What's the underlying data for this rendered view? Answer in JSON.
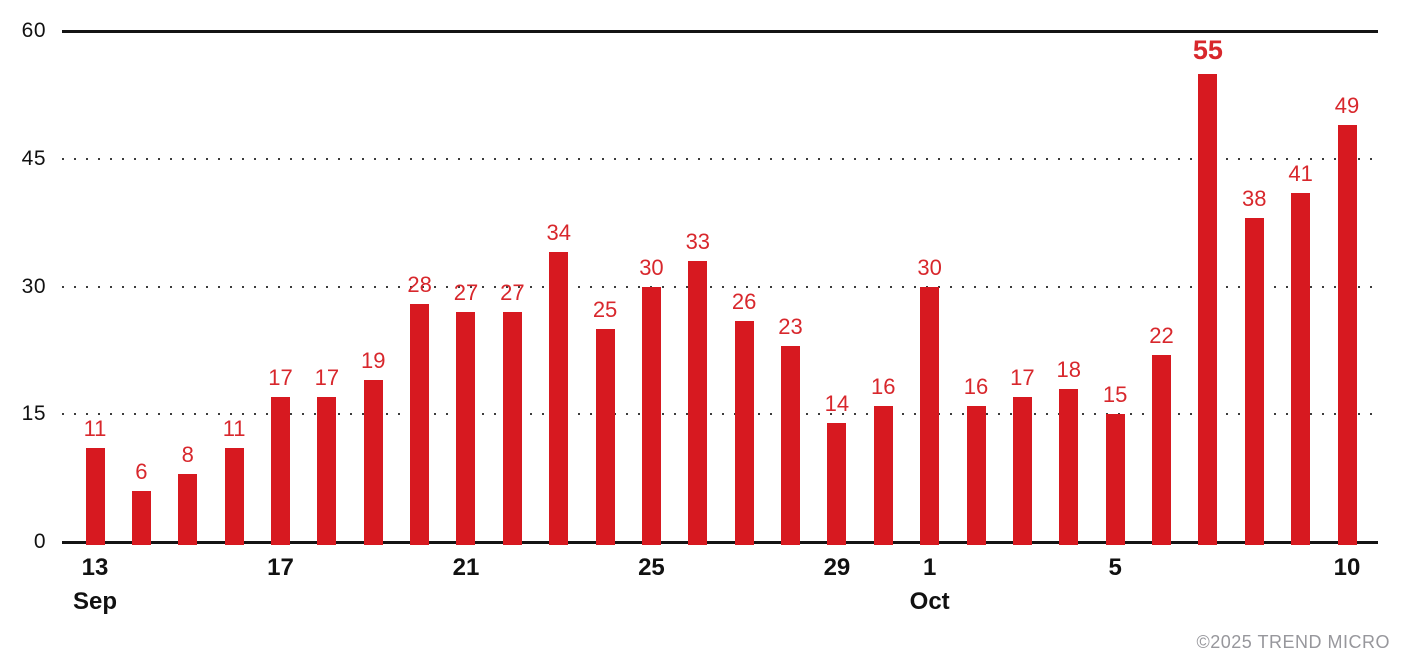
{
  "chart_data": {
    "type": "bar",
    "title": "",
    "xlabel": "",
    "ylabel": "",
    "categories": [
      "Sep 13",
      "Sep 14",
      "Sep 15",
      "Sep 16",
      "Sep 17",
      "Sep 18",
      "Sep 19",
      "Sep 20",
      "Sep 21",
      "Sep 22",
      "Sep 23",
      "Sep 24",
      "Sep 25",
      "Sep 26",
      "Sep 27",
      "Sep 28",
      "Sep 29",
      "Sep 30",
      "Oct 1",
      "Oct 2",
      "Oct 3",
      "Oct 4",
      "Oct 5",
      "Oct 6",
      "Oct 7",
      "Oct 8",
      "Oct 9",
      "Oct 10"
    ],
    "values": [
      11,
      6,
      8,
      11,
      17,
      17,
      19,
      28,
      27,
      27,
      34,
      25,
      30,
      33,
      26,
      23,
      14,
      16,
      30,
      16,
      17,
      18,
      15,
      22,
      55,
      38,
      41,
      49
    ],
    "ylim": [
      0,
      60
    ],
    "y_axis": {
      "ticks": [
        {
          "value": 60,
          "label": "60",
          "line": "solid"
        },
        {
          "value": 45,
          "label": "45",
          "line": "dotted"
        },
        {
          "value": 30,
          "label": "30",
          "line": "dotted"
        },
        {
          "value": 15,
          "label": "15",
          "line": "dotted"
        },
        {
          "value": 0,
          "label": "0",
          "line": "solid"
        }
      ]
    },
    "x_axis": {
      "ticks": [
        {
          "index": 0,
          "label": "13"
        },
        {
          "index": 4,
          "label": "17"
        },
        {
          "index": 8,
          "label": "21"
        },
        {
          "index": 12,
          "label": "25"
        },
        {
          "index": 16,
          "label": "29"
        },
        {
          "index": 18,
          "label": "1"
        },
        {
          "index": 22,
          "label": "5"
        },
        {
          "index": 27,
          "label": "10"
        }
      ],
      "month_labels": [
        {
          "index": 0,
          "label": "Sep"
        },
        {
          "index": 18,
          "label": "Oct"
        }
      ]
    },
    "legend": "none",
    "grid": "horizontal-dotted",
    "colors": {
      "bar": "#d71920",
      "value_label": "#d8272c",
      "axis_line": "#141414",
      "tick_label": "#111111",
      "copyright": "#97979c"
    }
  },
  "footer": {
    "copyright": "©2025 TREND MICRO"
  }
}
